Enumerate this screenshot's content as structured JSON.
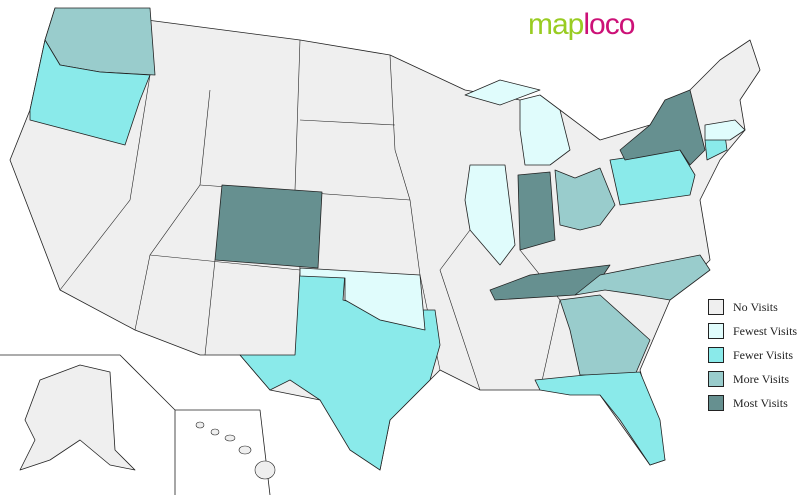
{
  "logo": {
    "part1": "map",
    "part2": "loco"
  },
  "colors": {
    "none": "#efefef",
    "fewest": "#e0fcfc",
    "fewer": "#8aeaea",
    "more": "#99cccc",
    "most": "#669090"
  },
  "legend": [
    {
      "label": "No Visits",
      "level": "none"
    },
    {
      "label": "Fewest Visits",
      "level": "fewest"
    },
    {
      "label": "Fewer Visits",
      "level": "fewer"
    },
    {
      "label": "More Visits",
      "level": "more"
    },
    {
      "label": "Most Visits",
      "level": "most"
    }
  ],
  "states": {
    "Washington": "more",
    "Oregon": "fewer",
    "Colorado": "most",
    "Texas": "fewer",
    "Oklahoma": "fewest",
    "Illinois": "fewest",
    "Indiana": "most",
    "Ohio": "more",
    "Michigan": "fewest",
    "Tennessee": "most",
    "North Carolina": "more",
    "Georgia": "more",
    "Florida": "fewer",
    "Pennsylvania": "fewer",
    "New York": "most",
    "Connecticut": "fewer",
    "Massachusetts": "fewest"
  }
}
